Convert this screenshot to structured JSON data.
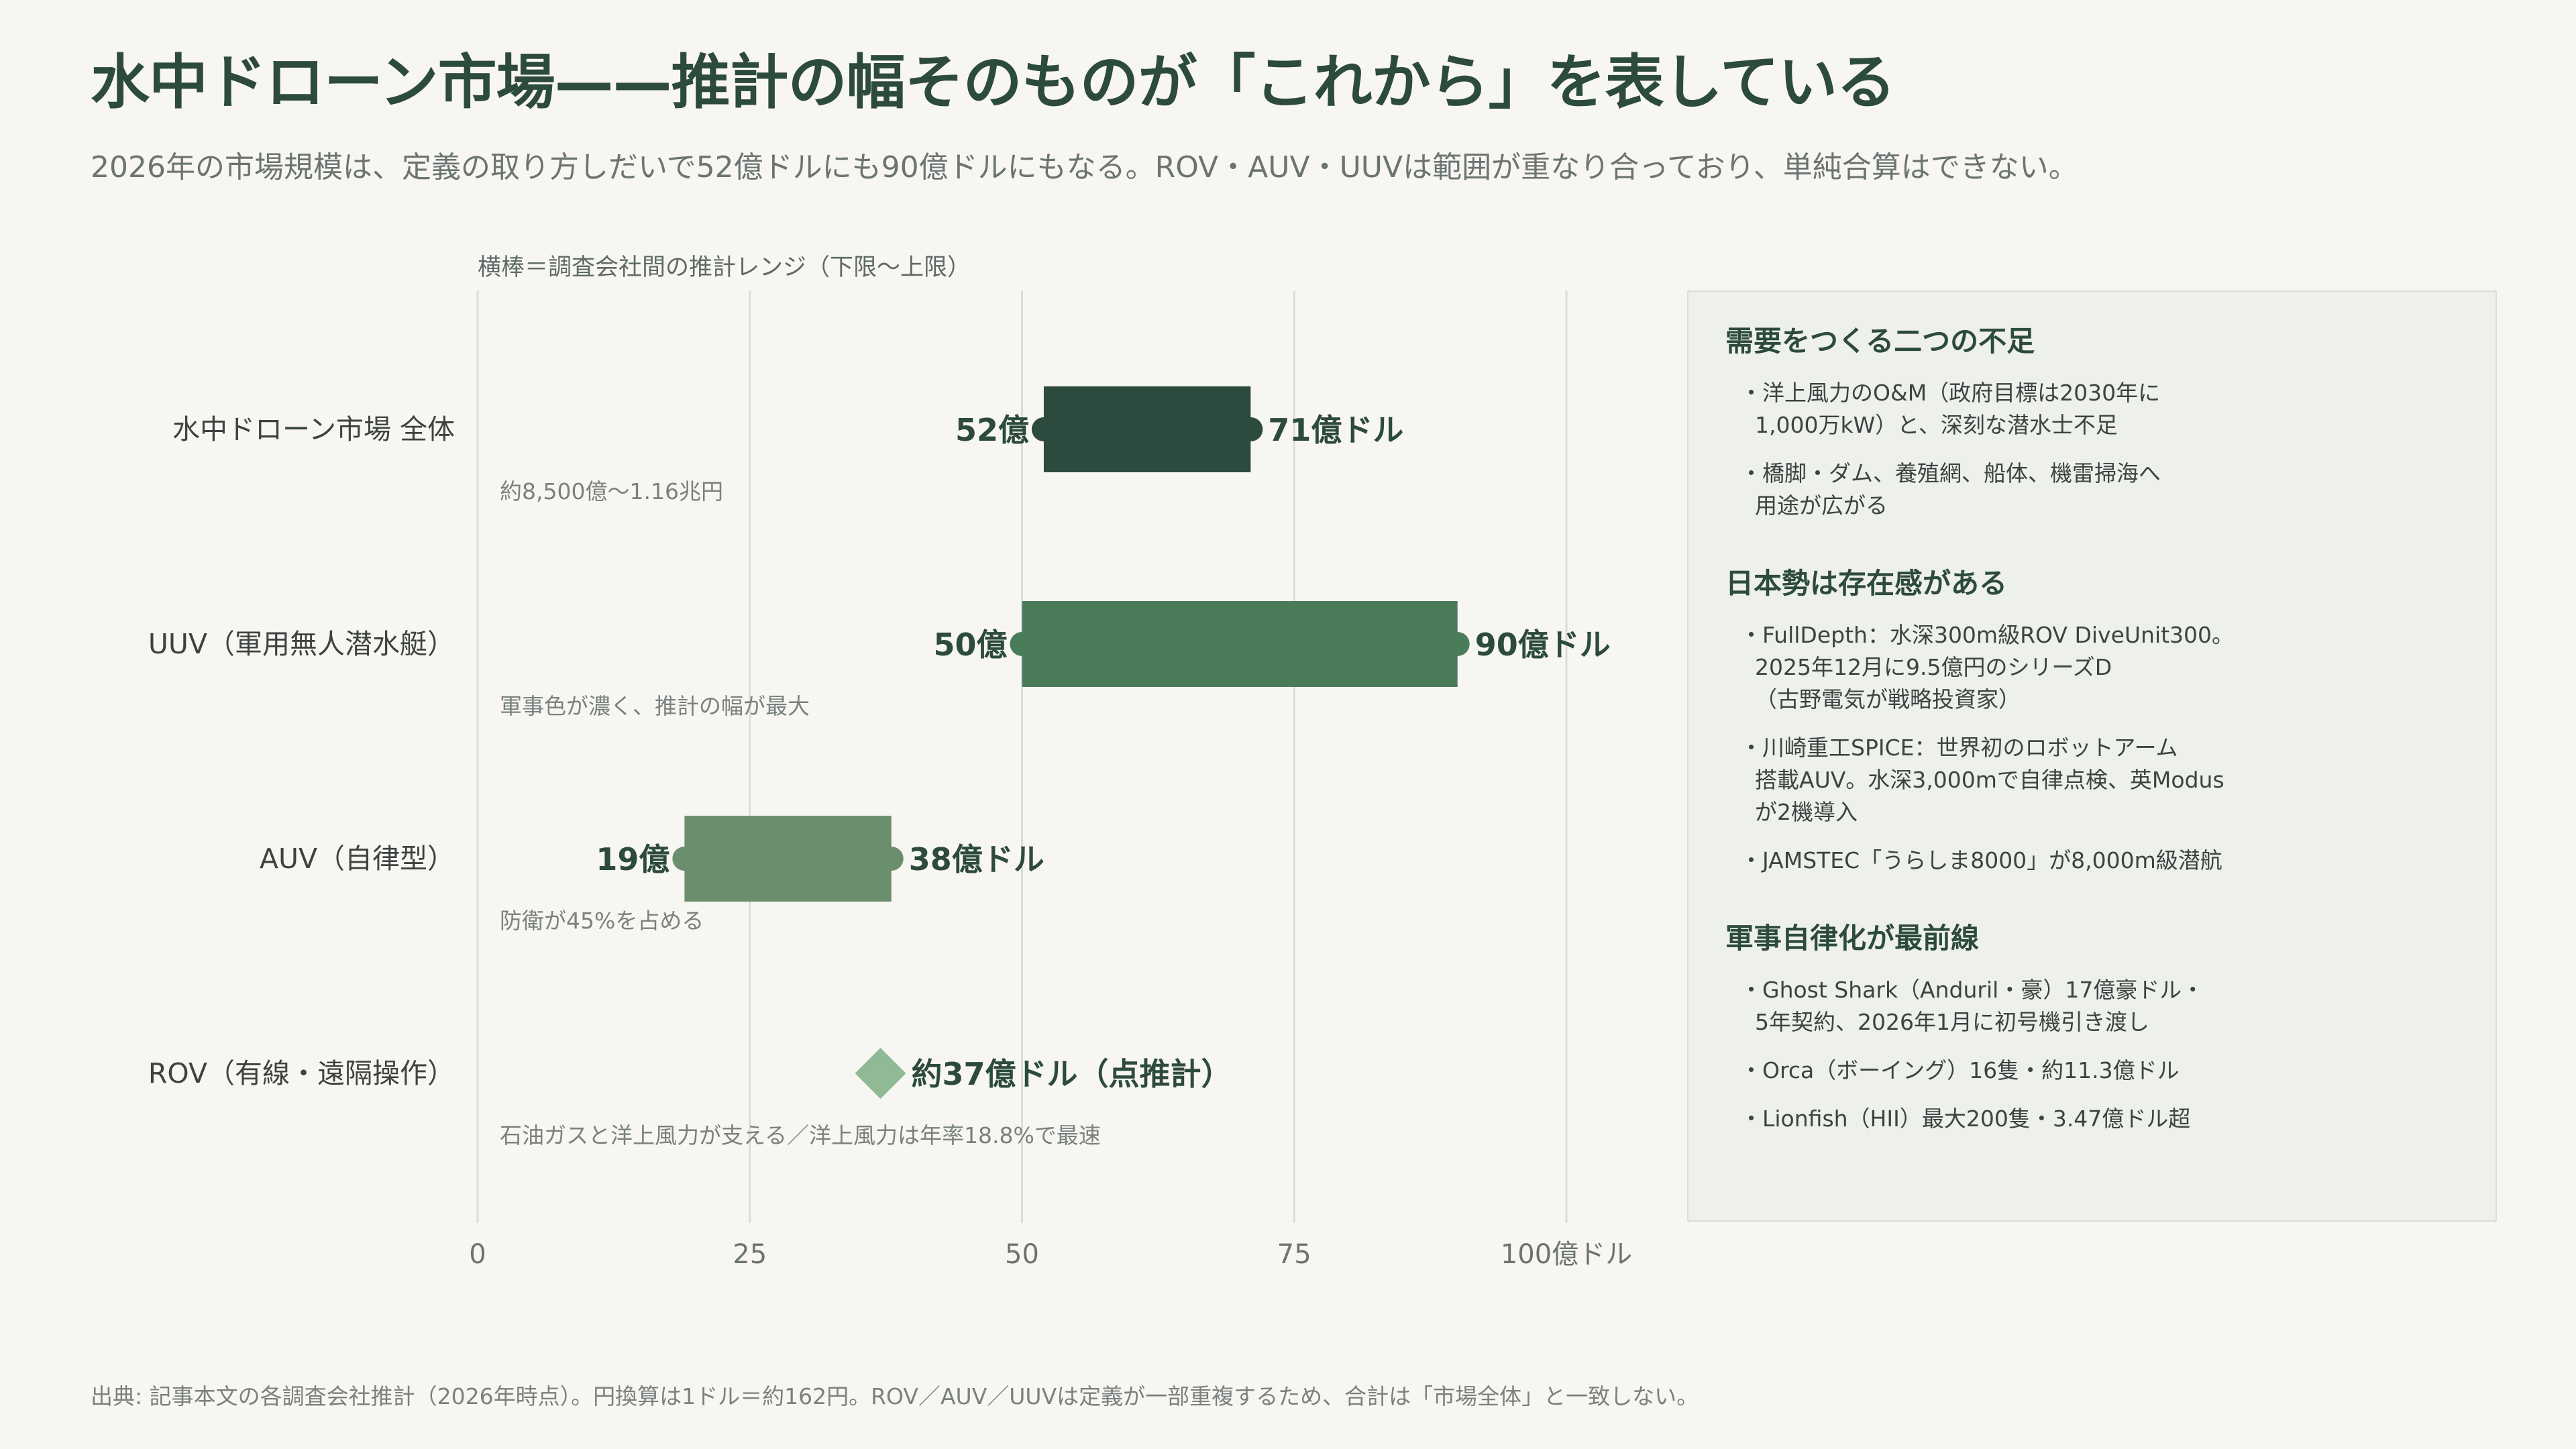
{
  "title": "水中ドローン市場——推計の幅そのものが「これから」を表している",
  "subtitle": "2026年の市場規模は、定義の取り方しだいで52億ドルにも90億ドルにもなる。ROV・AUV・UUVは範囲が重なり合っており、単純合算はできない。",
  "chart_note": "横棒＝調査会社間の推計レンジ（下限〜上限）",
  "colors": {
    "bar_total": "#2d4a3e",
    "bar_uuv": "#4a7c59",
    "bar_auv": "#6b8f6e",
    "marker_rov": "#8fba95",
    "grid": "#dcdcd8",
    "axis_text": "#6b7471"
  },
  "chart_data": {
    "type": "range_bar",
    "xlim": [
      0,
      100
    ],
    "xticks": [
      "0",
      "25",
      "50",
      "75",
      "100億ドル"
    ],
    "grid": true,
    "rows": [
      {
        "label": "水中ドローン市場 全体",
        "low": 52,
        "high": 71,
        "low_label": "52億",
        "high_label": "71億ドル",
        "note": "約8,500億〜1.16兆円",
        "kind": "range"
      },
      {
        "label": "UUV（軍用無人潜水艇）",
        "low": 50,
        "high": 90,
        "low_label": "50億",
        "high_label": "90億ドル",
        "note": "軍事色が濃く、推計の幅が最大",
        "kind": "range"
      },
      {
        "label": "AUV（自律型）",
        "low": 19,
        "high": 38,
        "low_label": "19億",
        "high_label": "38億ドル",
        "note": "防衛が45%を占める",
        "kind": "range"
      },
      {
        "label": "ROV（有線・遠隔操作）",
        "point": 37,
        "point_label": "約37億ドル（点推計）",
        "note": "石油ガスと洋上風力が支える／洋上風力は年率18.8%で最速",
        "kind": "point"
      }
    ]
  },
  "panel": {
    "sections": [
      {
        "heading": "需要をつくる二つの不足",
        "items": [
          "洋上風力のO&M（政府目標は2030年に\n1,000万kW）と、深刻な潜水士不足",
          "橋脚・ダム、養殖網、船体、機雷掃海へ\n用途が広がる"
        ]
      },
      {
        "heading": "日本勢は存在感がある",
        "items": [
          "FullDepth：水深300m級ROV DiveUnit300。\n2025年12月に9.5億円のシリーズD\n（古野電気が戦略投資家）",
          "川崎重工SPICE：世界初のロボットアーム\n搭載AUV。水深3,000mで自律点検、英Modus\nが2機導入",
          "JAMSTEC「うらしま8000」が8,000m級潜航"
        ]
      },
      {
        "heading": "軍事自律化が最前線",
        "items": [
          "Ghost Shark（Anduril・豪）17億豪ドル・\n5年契約、2026年1月に初号機引き渡し",
          "Orca（ボーイング）16隻・約11.3億ドル",
          "Lionfish（HII）最大200隻・3.47億ドル超"
        ]
      }
    ]
  },
  "source": "出典: 記事本文の各調査会社推計（2026年時点）。円換算は1ドル＝約162円。ROV／AUV／UUVは定義が一部重複するため、合計は「市場全体」と一致しない。"
}
